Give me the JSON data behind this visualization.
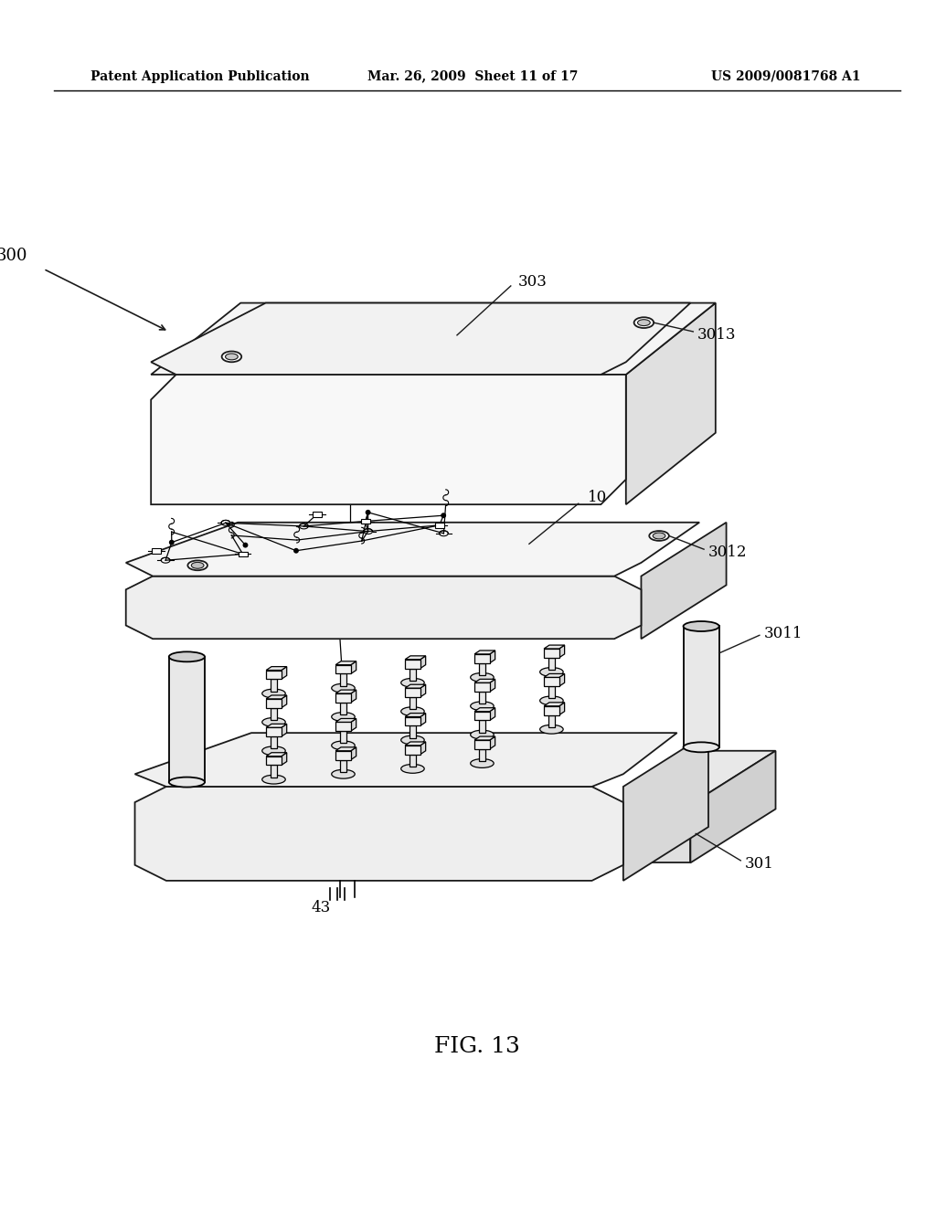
{
  "bg_color": "#ffffff",
  "header_left": "Patent Application Publication",
  "header_mid": "Mar. 26, 2009  Sheet 11 of 17",
  "header_right": "US 2009/0081768 A1",
  "fig_label": "FIG. 13",
  "line_color": "#1a1a1a",
  "fill_white": "#ffffff",
  "fill_light": "#f0f0f0",
  "fill_mid": "#d8d8d8",
  "fill_dark": "#b8b8b8"
}
